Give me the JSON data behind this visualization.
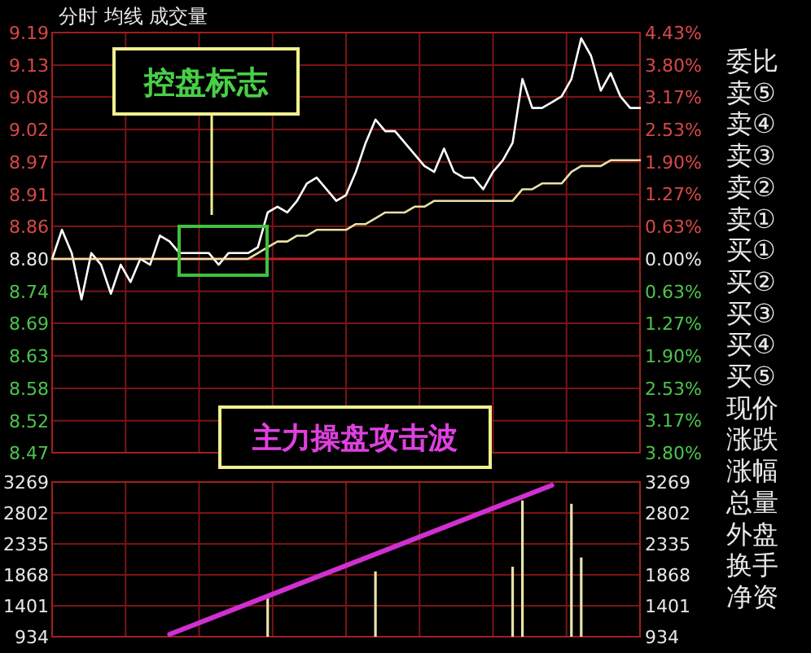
{
  "chart_data": [
    {
      "type": "line",
      "title": "分时 均线 成交量",
      "categories": [
        null,
        null,
        null,
        null,
        null,
        null,
        null,
        null,
        null,
        null,
        null,
        null,
        null,
        null,
        null,
        null,
        null,
        null,
        null,
        null,
        null,
        null,
        null,
        null,
        null,
        null,
        null,
        null,
        null,
        null,
        null,
        null,
        null,
        null,
        null,
        null,
        null,
        null,
        null,
        null,
        null,
        null,
        null,
        null,
        null,
        null,
        null,
        null,
        null,
        null,
        null,
        null,
        null,
        null,
        null,
        null,
        null,
        null,
        null,
        null,
        null
      ],
      "series": [
        {
          "color": "#ffffff",
          "values": [
            8.8,
            8.85,
            8.81,
            8.73,
            8.81,
            8.79,
            8.74,
            8.79,
            8.76,
            8.8,
            8.79,
            8.84,
            8.83,
            8.81,
            8.81,
            8.81,
            8.81,
            8.79,
            8.81,
            8.81,
            8.81,
            8.82,
            8.88,
            8.89,
            8.88,
            8.9,
            8.93,
            8.94,
            8.92,
            8.9,
            8.91,
            8.95,
            9.0,
            9.04,
            9.02,
            9.02,
            9.0,
            8.98,
            8.96,
            8.95,
            8.99,
            8.95,
            8.94,
            8.94,
            8.92,
            8.95,
            8.97,
            9.0,
            9.11,
            9.06,
            9.06,
            9.07,
            9.08,
            9.11,
            9.18,
            9.15,
            9.09,
            9.12,
            9.08,
            9.06,
            9.06
          ]
        },
        {
          "color": "#e8e2a8",
          "values": [
            8.8,
            8.8,
            8.8,
            8.8,
            8.8,
            8.8,
            8.8,
            8.8,
            8.8,
            8.8,
            8.8,
            8.8,
            8.8,
            8.8,
            8.8,
            8.8,
            8.8,
            8.8,
            8.8,
            8.8,
            8.8,
            8.81,
            8.82,
            8.83,
            8.83,
            8.84,
            8.84,
            8.85,
            8.85,
            8.85,
            8.85,
            8.86,
            8.86,
            8.87,
            8.88,
            8.88,
            8.88,
            8.89,
            8.89,
            8.9,
            8.9,
            8.9,
            8.9,
            8.9,
            8.9,
            8.9,
            8.9,
            8.9,
            8.92,
            8.92,
            8.93,
            8.93,
            8.93,
            8.95,
            8.96,
            8.96,
            8.96,
            8.97,
            8.97,
            8.97,
            8.97
          ]
        }
      ],
      "ylim": [
        8.466,
        9.19
      ],
      "yticks": [
        {
          "value": 9.19,
          "label": "9.19"
        },
        {
          "value": 9.134,
          "label": "9.13"
        },
        {
          "value": 9.079,
          "label": "9.08"
        },
        {
          "value": 9.023,
          "label": "9.02"
        },
        {
          "value": 8.967,
          "label": "8.97"
        },
        {
          "value": 8.911,
          "label": "8.91"
        },
        {
          "value": 8.856,
          "label": "8.86"
        },
        {
          "value": 8.8,
          "label": "8.80"
        },
        {
          "value": 8.744,
          "label": "8.74"
        },
        {
          "value": 8.689,
          "label": "8.69"
        },
        {
          "value": 8.633,
          "label": "8.63"
        },
        {
          "value": 8.577,
          "label": "8.58"
        },
        {
          "value": 8.521,
          "label": "8.52"
        },
        {
          "value": 8.466,
          "label": "8.47"
        }
      ],
      "y2lim": [
        -3.797,
        4.43
      ],
      "y2ticks": [
        {
          "value": 4.43,
          "label": "4.43%"
        },
        {
          "value": 3.797,
          "label": "3.80%"
        },
        {
          "value": 3.166,
          "label": "3.17%"
        },
        {
          "value": 2.531,
          "label": "2.53%"
        },
        {
          "value": 1.899,
          "label": "1.90%"
        },
        {
          "value": 1.266,
          "label": "1.27%"
        },
        {
          "value": 0.633,
          "label": "0.63%"
        },
        {
          "value": 0.0,
          "label": "0.00%"
        },
        {
          "value": -0.633,
          "label": "0.63%"
        },
        {
          "value": -1.266,
          "label": "1.27%"
        },
        {
          "value": -1.899,
          "label": "1.90%"
        },
        {
          "value": -2.531,
          "label": "2.53%"
        },
        {
          "value": -3.166,
          "label": "3.17%"
        },
        {
          "value": -3.797,
          "label": "3.80%"
        }
      ],
      "ref_lines": [
        {
          "axis": "y",
          "value": 8.8,
          "color": "#c02020"
        }
      ],
      "grid": true,
      "annotations": [
        "控盘标志"
      ]
    },
    {
      "type": "bar",
      "categories": [
        null,
        null,
        null,
        null,
        null,
        null,
        null,
        null,
        null,
        null,
        null,
        null,
        null,
        null,
        null,
        null,
        null,
        null,
        null,
        null,
        null,
        null,
        null,
        null,
        null,
        null,
        null,
        null,
        null,
        null,
        null,
        null,
        null,
        null,
        null,
        null,
        null,
        null,
        null,
        null,
        null,
        null,
        null,
        null,
        null,
        null,
        null,
        null,
        null,
        null,
        null,
        null,
        null,
        null,
        null,
        null,
        null,
        null,
        null,
        null,
        null
      ],
      "series": [
        {
          "type": "bar",
          "color": "#e8e2a8",
          "values": [
            null,
            null,
            null,
            null,
            null,
            null,
            null,
            null,
            null,
            null,
            null,
            null,
            null,
            null,
            null,
            null,
            null,
            null,
            null,
            null,
            null,
            null,
            1540,
            null,
            null,
            null,
            null,
            null,
            null,
            null,
            null,
            null,
            null,
            1920,
            null,
            null,
            null,
            null,
            null,
            null,
            null,
            null,
            null,
            null,
            null,
            null,
            null,
            1990,
            2990,
            null,
            null,
            null,
            null,
            2940,
            2130,
            null,
            null,
            null,
            null,
            null,
            null
          ]
        },
        {
          "type": "line",
          "color": "#d030d0",
          "values": [
            null,
            null,
            null,
            null,
            null,
            null,
            null,
            null,
            null,
            null,
            null,
            null,
            970,
            null,
            null,
            null,
            null,
            null,
            null,
            null,
            null,
            null,
            null,
            null,
            null,
            null,
            null,
            null,
            null,
            null,
            null,
            null,
            null,
            null,
            null,
            null,
            null,
            null,
            null,
            null,
            null,
            null,
            null,
            null,
            null,
            null,
            null,
            null,
            null,
            null,
            null,
            3220,
            null,
            null,
            null,
            null,
            null,
            null,
            null,
            null,
            null
          ]
        }
      ],
      "ylim": [
        934,
        3269
      ],
      "yticks": [
        934,
        1401,
        1868,
        2335,
        2802,
        3269
      ],
      "y2lim": [
        934,
        3269
      ],
      "y2ticks": [
        934,
        1401,
        1868,
        2335,
        2802,
        3269
      ],
      "grid": true,
      "annotations": [
        "主力操盘攻击波"
      ]
    },
    {
      "type": "other",
      "annotations": [
        "委比",
        "卖⑤",
        "卖④",
        "卖③",
        "卖②",
        "卖①",
        "买①",
        "买②",
        "买③",
        "买④",
        "买⑤",
        "现价",
        "涨跌",
        "涨幅",
        "总量",
        "外盘",
        "换手",
        "净资"
      ]
    }
  ]
}
